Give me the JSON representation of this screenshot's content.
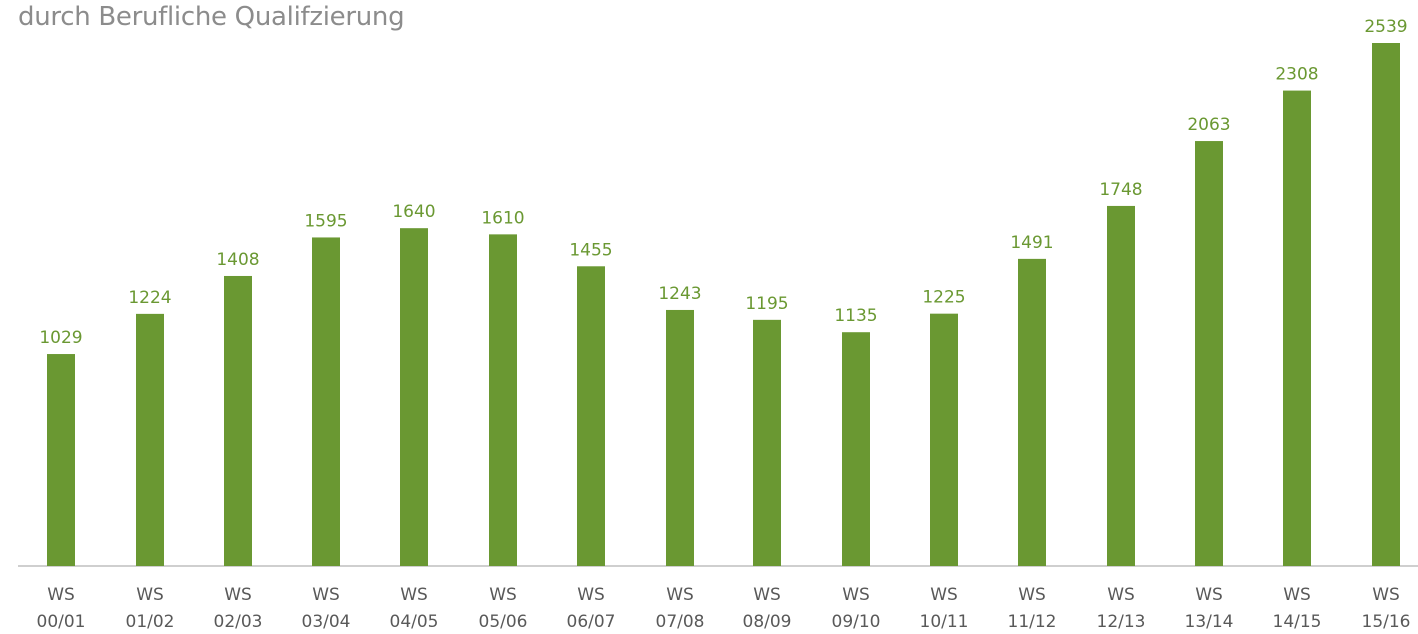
{
  "chart_data": {
    "type": "bar",
    "title": "durch Berufliche Qualifzierung",
    "categories": [
      [
        "WS",
        "00/01"
      ],
      [
        "WS",
        "01/02"
      ],
      [
        "WS",
        "02/03"
      ],
      [
        "WS",
        "03/04"
      ],
      [
        "WS",
        "04/05"
      ],
      [
        "WS",
        "05/06"
      ],
      [
        "WS",
        "06/07"
      ],
      [
        "WS",
        "07/08"
      ],
      [
        "WS",
        "08/09"
      ],
      [
        "WS",
        "09/10"
      ],
      [
        "WS",
        "10/11"
      ],
      [
        "WS",
        "11/12"
      ],
      [
        "WS",
        "12/13"
      ],
      [
        "WS",
        "13/14"
      ],
      [
        "WS",
        "14/15"
      ],
      [
        "WS",
        "15/16"
      ]
    ],
    "values": [
      1029,
      1224,
      1408,
      1595,
      1640,
      1610,
      1455,
      1243,
      1195,
      1135,
      1225,
      1491,
      1748,
      2063,
      2308,
      2539
    ],
    "ylim": [
      0,
      2580
    ],
    "data_labels": true,
    "grid": false,
    "colors": {
      "bar": "#6a9832",
      "label": "#6a9832",
      "axis": "#bfbfbf",
      "tick": "#595959"
    }
  }
}
